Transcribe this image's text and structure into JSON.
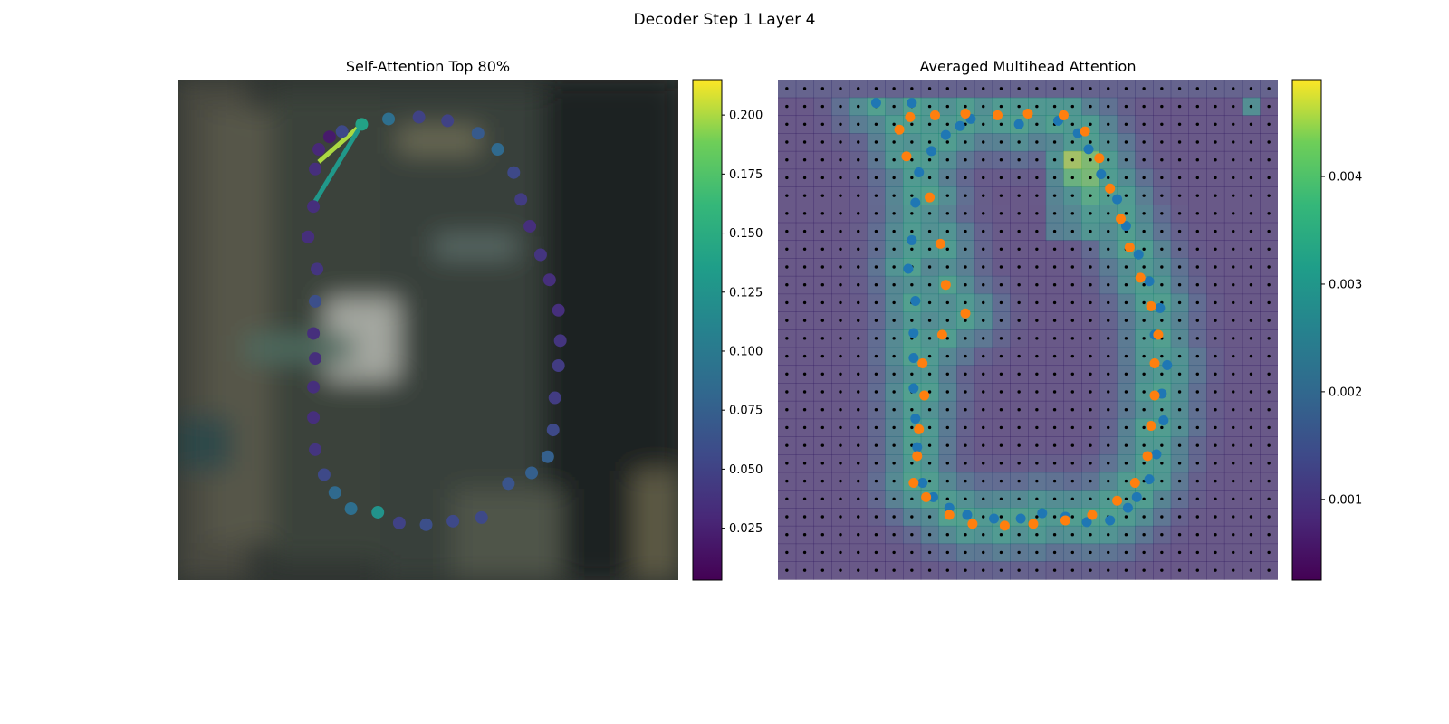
{
  "figure": {
    "title": "Decoder Step 1 Layer 4"
  },
  "chart_data": [
    {
      "type": "scatter",
      "title": "Self-Attention Top 80%",
      "description_of_marks": "contour points colored by self-attention weight over a blurred background image; lines connect the query point to its top-attended points",
      "colormap": "viridis",
      "colorbar": {
        "ticks": [
          0.025,
          0.05,
          0.075,
          0.1,
          0.125,
          0.15,
          0.175,
          0.2
        ],
        "tick_labels": [
          "0.025",
          "0.050",
          "0.075",
          "0.100",
          "0.125",
          "0.150",
          "0.175",
          "0.200"
        ],
        "range": [
          0.003,
          0.215
        ]
      },
      "grid": false,
      "axes_visible": false,
      "xlim": [
        0,
        28
      ],
      "ylim": [
        28,
        0
      ],
      "points": [
        {
          "x": 10.3,
          "y": 2.5,
          "w": 0.14
        },
        {
          "x": 11.8,
          "y": 2.2,
          "w": 0.09
        },
        {
          "x": 13.5,
          "y": 2.1,
          "w": 0.05
        },
        {
          "x": 15.1,
          "y": 2.3,
          "w": 0.05
        },
        {
          "x": 16.8,
          "y": 3.0,
          "w": 0.07
        },
        {
          "x": 17.9,
          "y": 3.9,
          "w": 0.085
        },
        {
          "x": 18.8,
          "y": 5.2,
          "w": 0.055
        },
        {
          "x": 19.2,
          "y": 6.7,
          "w": 0.045
        },
        {
          "x": 19.7,
          "y": 8.2,
          "w": 0.035
        },
        {
          "x": 20.3,
          "y": 9.8,
          "w": 0.04
        },
        {
          "x": 20.8,
          "y": 11.2,
          "w": 0.035
        },
        {
          "x": 21.3,
          "y": 12.9,
          "w": 0.035
        },
        {
          "x": 21.3,
          "y": 16.0,
          "w": 0.045
        },
        {
          "x": 21.4,
          "y": 14.6,
          "w": 0.04
        },
        {
          "x": 21.1,
          "y": 17.8,
          "w": 0.045
        },
        {
          "x": 21.0,
          "y": 19.6,
          "w": 0.055
        },
        {
          "x": 20.7,
          "y": 21.1,
          "w": 0.075
        },
        {
          "x": 19.8,
          "y": 22.0,
          "w": 0.075
        },
        {
          "x": 18.5,
          "y": 22.6,
          "w": 0.065
        },
        {
          "x": 17.0,
          "y": 24.5,
          "w": 0.055
        },
        {
          "x": 15.4,
          "y": 24.7,
          "w": 0.055
        },
        {
          "x": 13.9,
          "y": 24.9,
          "w": 0.06
        },
        {
          "x": 12.4,
          "y": 24.8,
          "w": 0.05
        },
        {
          "x": 11.2,
          "y": 24.2,
          "w": 0.125
        },
        {
          "x": 9.7,
          "y": 24.0,
          "w": 0.09
        },
        {
          "x": 8.8,
          "y": 23.1,
          "w": 0.085
        },
        {
          "x": 8.2,
          "y": 22.1,
          "w": 0.055
        },
        {
          "x": 7.7,
          "y": 20.7,
          "w": 0.04
        },
        {
          "x": 7.6,
          "y": 18.9,
          "w": 0.035
        },
        {
          "x": 7.6,
          "y": 17.2,
          "w": 0.035
        },
        {
          "x": 7.7,
          "y": 15.6,
          "w": 0.035
        },
        {
          "x": 7.6,
          "y": 14.2,
          "w": 0.035
        },
        {
          "x": 7.7,
          "y": 12.4,
          "w": 0.06
        },
        {
          "x": 7.8,
          "y": 10.6,
          "w": 0.04
        },
        {
          "x": 7.3,
          "y": 8.8,
          "w": 0.035
        },
        {
          "x": 7.6,
          "y": 7.1,
          "w": 0.035
        },
        {
          "x": 7.7,
          "y": 5.0,
          "w": 0.035
        },
        {
          "x": 7.9,
          "y": 3.9,
          "w": 0.03
        },
        {
          "x": 8.5,
          "y": 3.2,
          "w": 0.02
        },
        {
          "x": 9.2,
          "y": 2.9,
          "w": 0.055
        }
      ],
      "attention_lines": [
        {
          "from": [
            10.3,
            2.5
          ],
          "to": [
            7.9,
            4.6
          ],
          "w": 0.2
        },
        {
          "from": [
            10.3,
            2.5
          ],
          "to": [
            7.7,
            6.8
          ],
          "w": 0.13
        }
      ]
    },
    {
      "type": "heatmap",
      "title": "Averaged Multihead Attention",
      "colormap": "viridis",
      "colorbar": {
        "ticks": [
          0.001,
          0.002,
          0.003,
          0.004
        ],
        "tick_labels": [
          "0.001",
          "0.002",
          "0.003",
          "0.004"
        ],
        "range": [
          0.00025,
          0.0049
        ]
      },
      "grid_size": [
        28,
        28
      ],
      "grid_points_marker": "black dots at every cell center",
      "axes_visible": false,
      "xlim": [
        0,
        28
      ],
      "ylim": [
        28,
        0
      ],
      "series": [
        {
          "color": "#1f77b4",
          "points": [
            [
              5.5,
              1.3
            ],
            [
              7.5,
              1.3
            ],
            [
              10.8,
              2.2
            ],
            [
              10.2,
              2.6
            ],
            [
              13.5,
              2.5
            ],
            [
              15.7,
              2.3
            ],
            [
              16.8,
              3.0
            ],
            [
              17.4,
              3.9
            ],
            [
              18.1,
              5.3
            ],
            [
              19.0,
              6.7
            ],
            [
              19.5,
              8.2
            ],
            [
              20.2,
              9.8
            ],
            [
              20.8,
              11.3
            ],
            [
              21.4,
              12.8
            ],
            [
              21.1,
              14.3
            ],
            [
              21.8,
              16.0
            ],
            [
              21.5,
              17.6
            ],
            [
              21.6,
              19.1
            ],
            [
              21.2,
              21.0
            ],
            [
              20.8,
              22.4
            ],
            [
              20.1,
              23.4
            ],
            [
              19.6,
              24.0
            ],
            [
              18.6,
              24.7
            ],
            [
              17.3,
              24.8
            ],
            [
              16.1,
              24.5
            ],
            [
              14.8,
              24.3
            ],
            [
              13.6,
              24.6
            ],
            [
              12.1,
              24.6
            ],
            [
              10.6,
              24.4
            ],
            [
              9.6,
              24.0
            ],
            [
              8.7,
              23.4
            ],
            [
              8.1,
              22.6
            ],
            [
              7.8,
              20.6
            ],
            [
              7.7,
              19.0
            ],
            [
              7.6,
              17.3
            ],
            [
              7.6,
              15.6
            ],
            [
              7.6,
              14.2
            ],
            [
              7.7,
              12.4
            ],
            [
              7.3,
              10.6
            ],
            [
              7.5,
              9.0
            ],
            [
              7.7,
              6.9
            ],
            [
              7.9,
              5.2
            ],
            [
              8.6,
              4.0
            ],
            [
              9.4,
              3.1
            ]
          ]
        },
        {
          "color": "#ff7f0e",
          "points": [
            [
              6.8,
              2.8
            ],
            [
              7.4,
              2.1
            ],
            [
              8.8,
              2.0
            ],
            [
              10.5,
              1.9
            ],
            [
              12.3,
              2.0
            ],
            [
              14.0,
              1.9
            ],
            [
              16.0,
              2.0
            ],
            [
              17.2,
              2.9
            ],
            [
              18.0,
              4.4
            ],
            [
              18.6,
              6.1
            ],
            [
              19.2,
              7.8
            ],
            [
              19.7,
              9.4
            ],
            [
              20.3,
              11.1
            ],
            [
              20.9,
              12.7
            ],
            [
              21.3,
              14.3
            ],
            [
              21.1,
              15.9
            ],
            [
              21.1,
              17.7
            ],
            [
              20.9,
              19.4
            ],
            [
              20.7,
              21.1
            ],
            [
              20.0,
              22.6
            ],
            [
              19.0,
              23.6
            ],
            [
              17.6,
              24.4
            ],
            [
              16.1,
              24.7
            ],
            [
              14.3,
              24.9
            ],
            [
              12.7,
              25.0
            ],
            [
              10.9,
              24.9
            ],
            [
              9.6,
              24.4
            ],
            [
              8.3,
              23.4
            ],
            [
              7.6,
              22.6
            ],
            [
              7.8,
              21.1
            ],
            [
              7.9,
              19.6
            ],
            [
              8.2,
              17.7
            ],
            [
              8.1,
              15.9
            ],
            [
              9.2,
              14.3
            ],
            [
              10.5,
              13.1
            ],
            [
              9.4,
              11.5
            ],
            [
              9.1,
              9.2
            ],
            [
              8.5,
              6.6
            ],
            [
              7.2,
              4.3
            ]
          ]
        }
      ]
    }
  ]
}
